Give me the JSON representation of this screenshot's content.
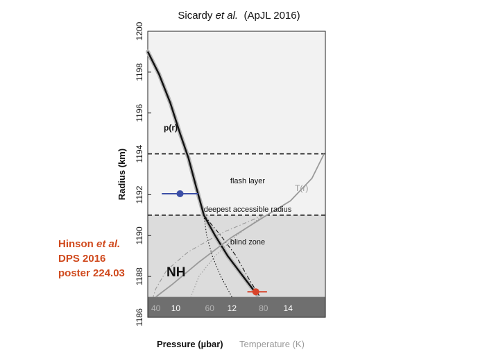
{
  "chart_data": {
    "type": "line",
    "title": {
      "authors": "Sicardy",
      "etal": "et al.",
      "journal": "(ApJL 2016)"
    },
    "ylabel": "Radius (km)",
    "ylim": [
      1186,
      1200
    ],
    "yticks": [
      "1186",
      "1188",
      "1190",
      "1192",
      "1194",
      "1196",
      "1198",
      "1200"
    ],
    "x_pressure": {
      "label": "Pressure (µbar)",
      "range": [
        9,
        15.33
      ],
      "ticks": [
        "10",
        "12",
        "14"
      ]
    },
    "x_temperature": {
      "label": "Temperature (K)",
      "range": [
        37,
        103
      ],
      "ticks": [
        "40",
        "60",
        "80"
      ]
    },
    "layers": {
      "flash_layer": {
        "label": "flash layer",
        "r_min": 1191,
        "r_max": 1194
      },
      "deepest_radius": {
        "label": "deepest accessible radius",
        "r": 1191
      },
      "blind_zone": {
        "label": "blind zone",
        "r_min": 1187,
        "r_max": 1191
      },
      "surface": {
        "r_min": 1186,
        "r_max": 1187
      }
    },
    "series": [
      {
        "name": "p(r)",
        "axis": "pressure",
        "style": "solid",
        "points": [
          [
            9.0,
            1199.0
          ],
          [
            9.4,
            1197.9
          ],
          [
            9.8,
            1196.5
          ],
          [
            10.15,
            1195.0
          ],
          [
            10.45,
            1193.8
          ],
          [
            10.72,
            1192.4
          ],
          [
            11.0,
            1191.0
          ],
          [
            11.4,
            1190.0
          ],
          [
            11.85,
            1189.0
          ],
          [
            12.4,
            1188.0
          ],
          [
            12.9,
            1187.1
          ]
        ]
      },
      {
        "axis": "pressure",
        "style": "dashdot",
        "points": [
          [
            11.0,
            1191.0
          ],
          [
            11.6,
            1190.0
          ],
          [
            12.15,
            1189.0
          ],
          [
            12.55,
            1188.0
          ],
          [
            13.0,
            1187.0
          ]
        ]
      },
      {
        "axis": "pressure",
        "style": "dotted",
        "points": [
          [
            11.0,
            1191.0
          ],
          [
            11.1,
            1190.0
          ],
          [
            11.3,
            1189.0
          ],
          [
            11.6,
            1188.0
          ],
          [
            12.0,
            1187.0
          ]
        ]
      },
      {
        "name": "T(r)",
        "axis": "temperature",
        "style": "solid",
        "points": [
          [
            102.5,
            1194.0
          ],
          [
            98.0,
            1192.8
          ],
          [
            90.0,
            1191.7
          ],
          [
            80.0,
            1190.9
          ],
          [
            68.0,
            1189.9
          ],
          [
            56.0,
            1188.7
          ],
          [
            46.0,
            1187.6
          ],
          [
            40.0,
            1187.0
          ]
        ]
      },
      {
        "axis": "temperature",
        "style": "dashdot",
        "points": [
          [
            80.0,
            1191.0
          ],
          [
            64.0,
            1190.1
          ],
          [
            52.0,
            1189.2
          ],
          [
            44.0,
            1188.3
          ],
          [
            40.0,
            1187.4
          ],
          [
            39.0,
            1187.0
          ]
        ]
      },
      {
        "axis": "temperature",
        "style": "dotted",
        "points": [
          [
            80.0,
            1191.0
          ],
          [
            70.0,
            1190.0
          ],
          [
            62.0,
            1189.0
          ],
          [
            56.0,
            1188.0
          ],
          [
            53.0,
            1187.0
          ]
        ]
      }
    ],
    "markers": [
      {
        "name": "blue-point",
        "color": "#3b4ea6",
        "x": 10.15,
        "y": 1192.05,
        "xerr": [
          9.5,
          10.8
        ]
      },
      {
        "name": "red-point",
        "color": "#d8432a",
        "x": 12.85,
        "y": 1187.25,
        "xerr": [
          12.55,
          13.25
        ]
      }
    ],
    "labels": {
      "pr": "p(r)",
      "tr": "T(r)",
      "nh": "NH"
    },
    "annotation": {
      "line1_name": "Hinson",
      "line1_etal": "et al.",
      "line2": "DPS 2016",
      "line3": "poster 224.03"
    },
    "colors": {
      "upper_bg": "#f2f2f2",
      "blind_bg": "#dcdcdc",
      "surface_bg": "#6f6f6f",
      "temperature": "#9a9a9a",
      "annotation": "#d04a1e"
    }
  }
}
